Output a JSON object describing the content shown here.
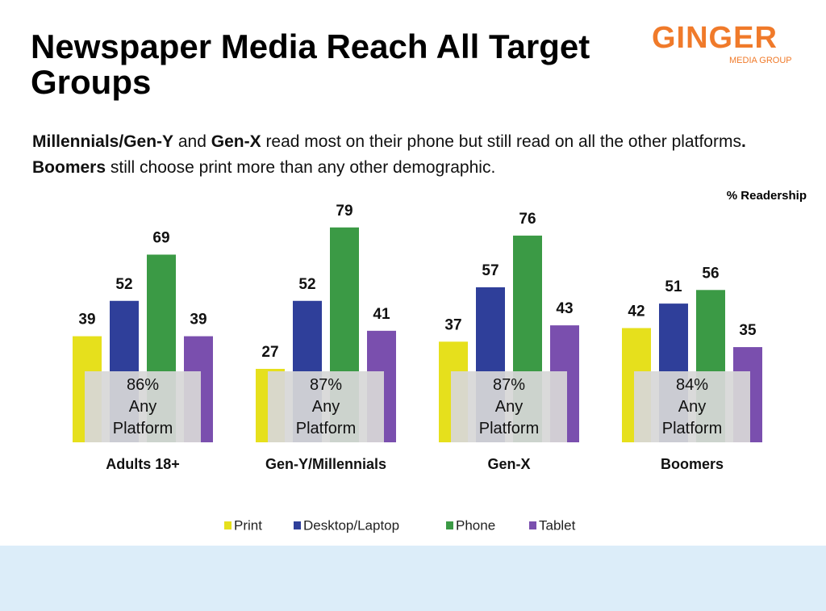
{
  "logo": {
    "name": "GINGER",
    "tagline": "MEDIA GROUP"
  },
  "chart_data": {
    "type": "bar",
    "title": "Newspaper Media Reach All Target Groups",
    "subtitle": [
      {
        "text": "Millennials/Gen-Y",
        "bold": true
      },
      {
        "text": " and "
      },
      {
        "text": "Gen-X",
        "bold": true
      },
      {
        "text": " read most on their phone but still read on all the other platforms"
      },
      {
        "text": ". Boomers",
        "bold": true
      },
      {
        "text": " still choose print more than any other demographic."
      }
    ],
    "unit_label": "% Readership",
    "categories": [
      "Adults 18+",
      "Gen-Y/Millennials",
      "Gen-X",
      "Boomers"
    ],
    "series": [
      {
        "name": "Print",
        "color": "#e6e01c",
        "values": [
          39,
          27,
          37,
          42
        ]
      },
      {
        "name": "Desktop/Laptop",
        "color": "#2f3f9a",
        "values": [
          52,
          52,
          57,
          51
        ]
      },
      {
        "name": "Phone",
        "color": "#3b9a45",
        "values": [
          69,
          79,
          76,
          56
        ]
      },
      {
        "name": "Tablet",
        "color": "#7a4fae",
        "values": [
          39,
          41,
          43,
          35
        ]
      }
    ],
    "any_platform": {
      "label": "Any Platform",
      "values": [
        86,
        87,
        87,
        84
      ],
      "value_labels": [
        "86%",
        "87%",
        "87%",
        "84%"
      ]
    }
  }
}
